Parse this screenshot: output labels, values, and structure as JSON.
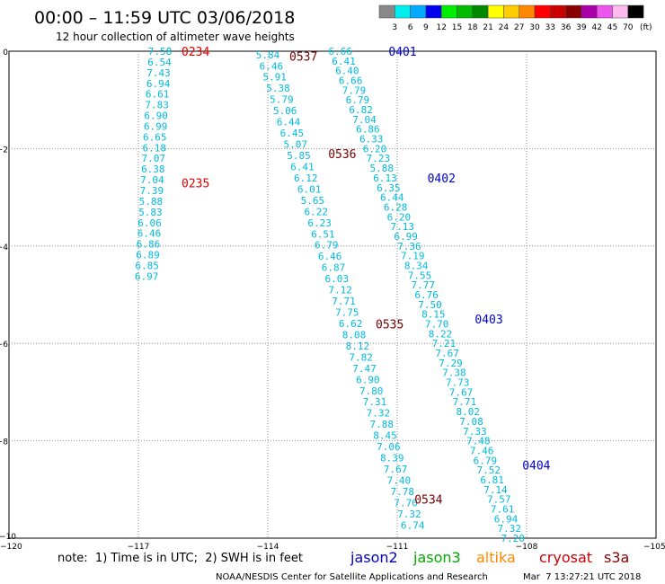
{
  "header": {
    "title": "00:00 – 11:59 UTC 03/06/2018",
    "subtitle": "12 hour collection of altimeter wave heights"
  },
  "colorbar": {
    "unit": "(ft)",
    "colors": [
      "#888888",
      "#00eeee",
      "#00aaff",
      "#0000ee",
      "#00ee00",
      "#00bb00",
      "#008800",
      "#ffff00",
      "#ffcc00",
      "#ff8800",
      "#ff0000",
      "#cc0000",
      "#880000",
      "#aa00aa",
      "#ee55ee",
      "#ffbbee",
      "#000000"
    ],
    "labels": [
      "3",
      "6",
      "9",
      "12",
      "15",
      "18",
      "21",
      "24",
      "27",
      "30",
      "33",
      "36",
      "39",
      "42",
      "45",
      "70"
    ]
  },
  "note": "note:  1) Time is in UTC;  2) SWH is in feet",
  "satellites": [
    {
      "name": "jason2",
      "color": "#0000cc"
    },
    {
      "name": "jason3",
      "color": "#00aa00"
    },
    {
      "name": "altika",
      "color": "#ff8800"
    },
    {
      "name": "cryosat",
      "color": "#cc0000"
    },
    {
      "name": "s3a",
      "color": "#880000"
    }
  ],
  "footer": {
    "credit": "NOAA/NESDIS Center for Satellite Applications and Research",
    "timestamp": "Mar  7 13:27:21 UTC 2018"
  },
  "chart_data": {
    "type": "scatter",
    "xlim": [
      -120,
      -105
    ],
    "ylim": [
      -10,
      0
    ],
    "xticks": [
      -117,
      -114,
      -111,
      -108
    ],
    "xtick_labels": [
      "−117",
      "−114",
      "−111",
      "−108"
    ],
    "yticks": [
      0,
      -2,
      -4,
      -6,
      -8
    ],
    "ytick_labels": [
      "0",
      "−2",
      "−4",
      "−6",
      "−8"
    ],
    "corner_labels": [
      "−10",
      "−120",
      "−105"
    ],
    "grid": true,
    "tracks": [
      {
        "satellite": "altika",
        "color": "#00bbdd",
        "points": [
          {
            "x": -116.5,
            "y": 0.0,
            "v": "7.58"
          },
          {
            "x": -116.51,
            "y": -0.22,
            "v": "6.54"
          },
          {
            "x": -116.53,
            "y": -0.44,
            "v": "7.43"
          },
          {
            "x": -116.54,
            "y": -0.66,
            "v": "6.94"
          },
          {
            "x": -116.56,
            "y": -0.88,
            "v": "6.61"
          },
          {
            "x": -116.57,
            "y": -1.1,
            "v": "7.83"
          },
          {
            "x": -116.59,
            "y": -1.32,
            "v": "6.90"
          },
          {
            "x": -116.6,
            "y": -1.54,
            "v": "6.99"
          },
          {
            "x": -116.62,
            "y": -1.76,
            "v": "6.65"
          },
          {
            "x": -116.63,
            "y": -1.98,
            "v": "6.18"
          },
          {
            "x": -116.65,
            "y": -2.2,
            "v": "7.07"
          },
          {
            "x": -116.66,
            "y": -2.42,
            "v": "6.38"
          },
          {
            "x": -116.68,
            "y": -2.64,
            "v": "7.04"
          },
          {
            "x": -116.69,
            "y": -2.86,
            "v": "7.39"
          },
          {
            "x": -116.71,
            "y": -3.08,
            "v": "5.88"
          },
          {
            "x": -116.72,
            "y": -3.3,
            "v": "5.83"
          },
          {
            "x": -116.74,
            "y": -3.52,
            "v": "6.06"
          },
          {
            "x": -116.75,
            "y": -3.74,
            "v": "6.46"
          },
          {
            "x": -116.77,
            "y": -3.96,
            "v": "6.86"
          },
          {
            "x": -116.78,
            "y": -4.18,
            "v": "6.89"
          },
          {
            "x": -116.8,
            "y": -4.4,
            "v": "6.85"
          },
          {
            "x": -116.81,
            "y": -4.62,
            "v": "6.97"
          }
        ]
      },
      {
        "satellite": "altika",
        "color": "#00bbdd",
        "points": [
          {
            "x": -114.0,
            "y": -0.07,
            "v": "5.84"
          },
          {
            "x": -113.92,
            "y": -0.3,
            "v": "6.46"
          },
          {
            "x": -113.84,
            "y": -0.53,
            "v": "5.91"
          },
          {
            "x": -113.76,
            "y": -0.76,
            "v": "5.38"
          },
          {
            "x": -113.68,
            "y": -0.99,
            "v": "5.79"
          },
          {
            "x": -113.6,
            "y": -1.22,
            "v": "5.06"
          },
          {
            "x": -113.52,
            "y": -1.45,
            "v": "6.44"
          },
          {
            "x": -113.44,
            "y": -1.68,
            "v": "6.45"
          },
          {
            "x": -113.36,
            "y": -1.91,
            "v": "5.07"
          },
          {
            "x": -113.28,
            "y": -2.14,
            "v": "5.85"
          },
          {
            "x": -113.2,
            "y": -2.37,
            "v": "6.41"
          },
          {
            "x": -113.12,
            "y": -2.6,
            "v": "6.12"
          },
          {
            "x": -113.04,
            "y": -2.83,
            "v": "6.01"
          },
          {
            "x": -112.96,
            "y": -3.06,
            "v": "5.65"
          },
          {
            "x": -112.88,
            "y": -3.29,
            "v": "6.22"
          },
          {
            "x": -112.8,
            "y": -3.52,
            "v": "6.23"
          },
          {
            "x": -112.72,
            "y": -3.75,
            "v": "6.51"
          },
          {
            "x": -112.64,
            "y": -3.98,
            "v": "6.79"
          },
          {
            "x": -112.56,
            "y": -4.21,
            "v": "6.46"
          },
          {
            "x": -112.48,
            "y": -4.44,
            "v": "6.87"
          },
          {
            "x": -112.4,
            "y": -4.67,
            "v": "6.03"
          },
          {
            "x": -112.32,
            "y": -4.9,
            "v": "7.12"
          },
          {
            "x": -112.24,
            "y": -5.13,
            "v": "7.71"
          },
          {
            "x": -112.16,
            "y": -5.36,
            "v": "7.75"
          },
          {
            "x": -112.08,
            "y": -5.59,
            "v": "6.62"
          },
          {
            "x": -112.0,
            "y": -5.82,
            "v": "8.08"
          },
          {
            "x": -111.92,
            "y": -6.05,
            "v": "8.12"
          },
          {
            "x": -111.84,
            "y": -6.28,
            "v": "7.82"
          },
          {
            "x": -111.76,
            "y": -6.51,
            "v": "7.47"
          },
          {
            "x": -111.68,
            "y": -6.74,
            "v": "6.90"
          },
          {
            "x": -111.6,
            "y": -6.97,
            "v": "7.80"
          },
          {
            "x": -111.52,
            "y": -7.2,
            "v": "7.31"
          },
          {
            "x": -111.44,
            "y": -7.43,
            "v": "7.32"
          },
          {
            "x": -111.36,
            "y": -7.66,
            "v": "7.88"
          },
          {
            "x": -111.28,
            "y": -7.89,
            "v": "8.45"
          },
          {
            "x": -111.2,
            "y": -8.12,
            "v": "7.06"
          },
          {
            "x": -111.12,
            "y": -8.35,
            "v": "8.39"
          },
          {
            "x": -111.04,
            "y": -8.58,
            "v": "7.67"
          },
          {
            "x": -110.96,
            "y": -8.81,
            "v": "7.40"
          },
          {
            "x": -110.88,
            "y": -9.04,
            "v": "7.78"
          },
          {
            "x": -110.8,
            "y": -9.27,
            "v": "7.70"
          },
          {
            "x": -110.72,
            "y": -9.5,
            "v": "7.32"
          },
          {
            "x": -110.64,
            "y": -9.73,
            "v": "6.74"
          }
        ]
      },
      {
        "satellite": "altika",
        "color": "#00bbdd",
        "points": [
          {
            "x": -112.32,
            "y": 0.0,
            "v": "6.66"
          },
          {
            "x": -112.24,
            "y": -0.2,
            "v": "6.41"
          },
          {
            "x": -112.16,
            "y": -0.4,
            "v": "6.40"
          },
          {
            "x": -112.08,
            "y": -0.6,
            "v": "6.66"
          },
          {
            "x": -112.0,
            "y": -0.8,
            "v": "7.79"
          },
          {
            "x": -111.92,
            "y": -1.0,
            "v": "6.79"
          },
          {
            "x": -111.84,
            "y": -1.2,
            "v": "6.82"
          },
          {
            "x": -111.76,
            "y": -1.4,
            "v": "7.04"
          },
          {
            "x": -111.68,
            "y": -1.6,
            "v": "6.86"
          },
          {
            "x": -111.6,
            "y": -1.8,
            "v": "6.33"
          },
          {
            "x": -111.52,
            "y": -2.0,
            "v": "6.20"
          },
          {
            "x": -111.44,
            "y": -2.2,
            "v": "7.23"
          },
          {
            "x": -111.36,
            "y": -2.4,
            "v": "5.88"
          },
          {
            "x": -111.28,
            "y": -2.6,
            "v": "6.13"
          },
          {
            "x": -111.2,
            "y": -2.8,
            "v": "6.35"
          },
          {
            "x": -111.12,
            "y": -3.0,
            "v": "6.44"
          },
          {
            "x": -111.04,
            "y": -3.2,
            "v": "6.28"
          },
          {
            "x": -110.96,
            "y": -3.4,
            "v": "6.20"
          },
          {
            "x": -110.88,
            "y": -3.6,
            "v": "7.13"
          },
          {
            "x": -110.8,
            "y": -3.8,
            "v": "6.99"
          },
          {
            "x": -110.72,
            "y": -4.0,
            "v": "7.36"
          },
          {
            "x": -110.64,
            "y": -4.2,
            "v": "7.19"
          },
          {
            "x": -110.56,
            "y": -4.4,
            "v": "8.34"
          },
          {
            "x": -110.48,
            "y": -4.6,
            "v": "7.55"
          },
          {
            "x": -110.4,
            "y": -4.8,
            "v": "7.77"
          },
          {
            "x": -110.32,
            "y": -5.0,
            "v": "6.76"
          },
          {
            "x": -110.24,
            "y": -5.2,
            "v": "7.50"
          },
          {
            "x": -110.16,
            "y": -5.4,
            "v": "8.15"
          },
          {
            "x": -110.08,
            "y": -5.6,
            "v": "7.70"
          },
          {
            "x": -110.0,
            "y": -5.8,
            "v": "8.22"
          },
          {
            "x": -109.92,
            "y": -6.0,
            "v": "7.21"
          },
          {
            "x": -109.84,
            "y": -6.2,
            "v": "7.67"
          },
          {
            "x": -109.76,
            "y": -6.4,
            "v": "7.29"
          },
          {
            "x": -109.68,
            "y": -6.6,
            "v": "7.38"
          },
          {
            "x": -109.6,
            "y": -6.8,
            "v": "7.73"
          },
          {
            "x": -109.52,
            "y": -7.0,
            "v": "7.67"
          },
          {
            "x": -109.44,
            "y": -7.2,
            "v": "7.71"
          },
          {
            "x": -109.36,
            "y": -7.4,
            "v": "8.02"
          },
          {
            "x": -109.28,
            "y": -7.6,
            "v": "7.08"
          },
          {
            "x": -109.2,
            "y": -7.8,
            "v": "7.33"
          },
          {
            "x": -109.12,
            "y": -8.0,
            "v": "7.48"
          },
          {
            "x": -109.04,
            "y": -8.2,
            "v": "7.46"
          },
          {
            "x": -108.96,
            "y": -8.4,
            "v": "6.79"
          },
          {
            "x": -108.88,
            "y": -8.6,
            "v": "7.52"
          },
          {
            "x": -108.8,
            "y": -8.8,
            "v": "6.81"
          },
          {
            "x": -108.72,
            "y": -9.0,
            "v": "7.14"
          },
          {
            "x": -108.64,
            "y": -9.2,
            "v": "7.57"
          },
          {
            "x": -108.56,
            "y": -9.4,
            "v": "7.61"
          },
          {
            "x": -108.48,
            "y": -9.6,
            "v": "6.94"
          },
          {
            "x": -108.4,
            "y": -9.8,
            "v": "7.32"
          },
          {
            "x": -108.32,
            "y": -10.0,
            "v": "7.20"
          }
        ]
      }
    ],
    "time_labels": [
      {
        "text": "0234",
        "x": -116.0,
        "y": 0.0,
        "color": "#dd0000"
      },
      {
        "text": "0235",
        "x": -116.0,
        "y": -2.7,
        "color": "#dd0000"
      },
      {
        "text": "0537",
        "x": -113.5,
        "y": -0.1,
        "color": "#770000"
      },
      {
        "text": "0536",
        "x": -112.6,
        "y": -2.1,
        "color": "#770000"
      },
      {
        "text": "0535",
        "x": -111.5,
        "y": -5.6,
        "color": "#770000"
      },
      {
        "text": "0534",
        "x": -110.6,
        "y": -9.2,
        "color": "#770000"
      },
      {
        "text": "0401",
        "x": -111.2,
        "y": 0.0,
        "color": "#0000cc"
      },
      {
        "text": "0402",
        "x": -110.3,
        "y": -2.6,
        "color": "#0000cc"
      },
      {
        "text": "0403",
        "x": -109.2,
        "y": -5.5,
        "color": "#0000cc"
      },
      {
        "text": "0404",
        "x": -108.1,
        "y": -8.5,
        "color": "#0000cc"
      }
    ]
  }
}
